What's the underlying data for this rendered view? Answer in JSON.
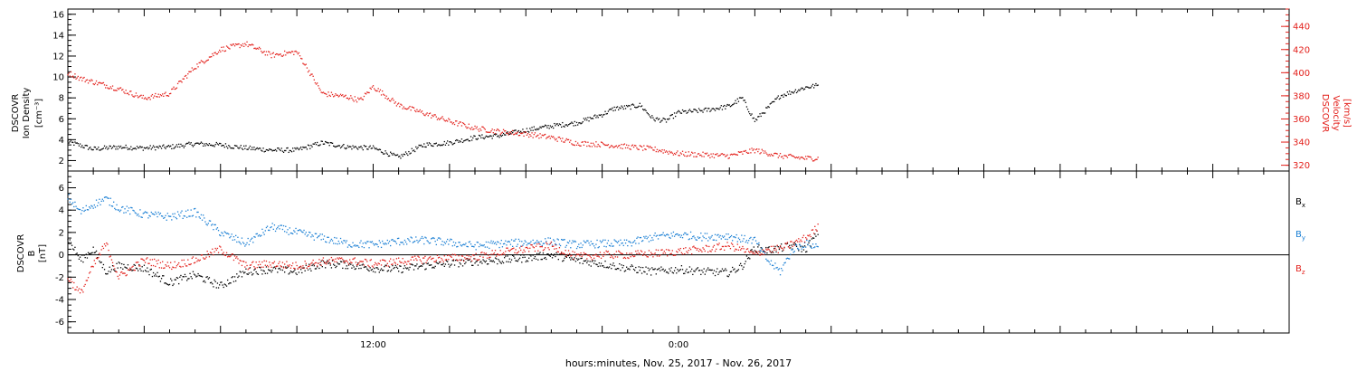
{
  "chart_data": [
    {
      "type": "scatter",
      "panel": "top",
      "left_axis": {
        "label_lines": [
          "DSCOVR",
          "Ion Density",
          "[cm⁻³]"
        ],
        "range": [
          1,
          16.5
        ],
        "ticks": [
          2,
          4,
          6,
          8,
          10,
          12,
          14,
          16
        ],
        "color": "#000000"
      },
      "right_axis": {
        "label_lines": [
          "DSCOVR",
          "Velocity",
          "[km/s]"
        ],
        "range": [
          315,
          455
        ],
        "ticks": [
          320,
          340,
          360,
          380,
          400,
          420,
          440
        ],
        "color": "#e3201b"
      },
      "series": [
        {
          "name": "Ion Density",
          "color": "#000000",
          "axis": "left",
          "x": [
            0,
            1,
            2,
            3,
            4,
            5,
            6,
            7,
            8,
            9,
            10,
            11,
            12,
            13,
            14,
            15,
            16,
            17,
            18,
            19,
            20,
            21,
            21.5,
            22,
            22.5,
            23,
            23.5,
            24,
            25,
            26,
            26.5,
            27,
            28,
            29,
            29.5
          ],
          "y": [
            3.8,
            3.1,
            3.3,
            3.2,
            3.3,
            3.6,
            3.5,
            3.2,
            3.0,
            3.0,
            3.7,
            3.3,
            3.2,
            2.3,
            3.5,
            3.7,
            4.2,
            4.4,
            4.9,
            5.3,
            5.6,
            6.4,
            7.0,
            7.1,
            7.3,
            6.0,
            5.8,
            6.6,
            6.8,
            7.2,
            8.0,
            5.8,
            8.2,
            9.0,
            9.2
          ]
        },
        {
          "name": "Velocity",
          "color": "#e3201b",
          "axis": "right",
          "x": [
            0,
            0.5,
            1,
            2,
            3,
            4,
            5,
            6,
            7,
            8,
            9,
            9.3,
            10,
            11,
            11.5,
            12,
            13,
            14,
            15,
            16,
            17,
            18,
            19,
            20,
            21,
            22,
            23,
            24,
            25,
            26,
            27,
            28,
            29,
            29.5
          ],
          "y": [
            400,
            395,
            392,
            386,
            378,
            382,
            405,
            420,
            425,
            415,
            418,
            408,
            382,
            379,
            376,
            388,
            372,
            365,
            358,
            352,
            349,
            347,
            344,
            339,
            338,
            336,
            334,
            330,
            329,
            328,
            333,
            328,
            326,
            326
          ]
        }
      ]
    },
    {
      "type": "scatter",
      "panel": "bottom",
      "left_axis": {
        "label_lines": [
          "DSCOVR",
          "B",
          "[nT]"
        ],
        "range": [
          -7,
          7.5
        ],
        "ticks": [
          -6,
          -4,
          -2,
          0,
          2,
          4,
          6
        ],
        "color": "#000000"
      },
      "series": [
        {
          "name": "B",
          "sub": "x",
          "color": "#000000",
          "x": [
            0,
            0.5,
            1,
            1.5,
            2,
            3,
            4,
            5,
            6,
            7,
            8,
            9,
            10,
            11,
            12,
            13,
            14,
            15,
            16,
            17,
            18,
            19,
            20,
            21,
            22,
            23,
            24,
            25,
            26,
            26.5,
            27,
            27.5,
            28,
            28.5,
            29,
            29.5
          ],
          "y": [
            1.5,
            -0.5,
            0.5,
            -1.5,
            -1.0,
            -1.2,
            -2.5,
            -1.8,
            -2.8,
            -1.5,
            -1.3,
            -1.5,
            -0.8,
            -0.9,
            -1.2,
            -1.3,
            -1.0,
            -0.8,
            -0.6,
            -0.5,
            -0.3,
            0.0,
            -0.5,
            -0.8,
            -1.2,
            -1.5,
            -1.3,
            -1.5,
            -1.6,
            -1.0,
            0.6,
            0.4,
            0.6,
            0.8,
            0.5,
            2.0
          ]
        },
        {
          "name": "B",
          "sub": "y",
          "color": "#1a7fd4",
          "x": [
            0,
            0.5,
            1,
            1.5,
            2,
            3,
            4,
            5,
            6,
            7,
            8,
            9,
            10,
            11,
            12,
            13,
            14,
            15,
            16,
            17,
            18,
            19,
            20,
            21,
            22,
            23,
            24,
            25,
            26,
            26.5,
            27,
            27.5,
            28,
            28.5,
            29,
            29.5
          ],
          "y": [
            5.2,
            3.8,
            4.5,
            5.0,
            4.2,
            3.6,
            3.4,
            3.8,
            2.0,
            1.0,
            2.5,
            2.0,
            1.5,
            1.0,
            0.9,
            1.2,
            1.3,
            1.1,
            0.8,
            1.0,
            1.1,
            1.2,
            0.9,
            1.0,
            1.0,
            1.6,
            1.8,
            1.6,
            1.7,
            1.4,
            1.3,
            -0.5,
            -1.5,
            0.5,
            1.0,
            0.7
          ]
        },
        {
          "name": "B",
          "sub": "z",
          "color": "#e3201b",
          "x": [
            0,
            0.5,
            1,
            1.5,
            2,
            3,
            4,
            5,
            6,
            7,
            8,
            9,
            10,
            11,
            12,
            13,
            14,
            15,
            16,
            17,
            18,
            19,
            20,
            21,
            22,
            23,
            24,
            25,
            26,
            26.5,
            27,
            27.5,
            28,
            28.5,
            29,
            29.5
          ],
          "y": [
            -2.0,
            -3.5,
            -1.0,
            1.0,
            -2.0,
            -0.5,
            -1.0,
            -0.5,
            0.5,
            -1.0,
            -0.8,
            -1.0,
            -0.6,
            -0.5,
            -0.8,
            -0.6,
            -0.4,
            -0.3,
            -0.2,
            0.2,
            0.5,
            0.8,
            -0.2,
            0.0,
            0.0,
            0.1,
            0.3,
            0.5,
            0.8,
            0.5,
            0.0,
            0.5,
            0.5,
            1.0,
            1.5,
            2.5
          ]
        }
      ]
    }
  ],
  "x_axis": {
    "range_hours": [
      0,
      48
    ],
    "tick_labels": [
      {
        "hour": 12,
        "text": "12:00"
      },
      {
        "hour": 24,
        "text": "0:00"
      }
    ],
    "caption": "hours:minutes, Nov. 25, 2017 - Nov. 26, 2017"
  }
}
